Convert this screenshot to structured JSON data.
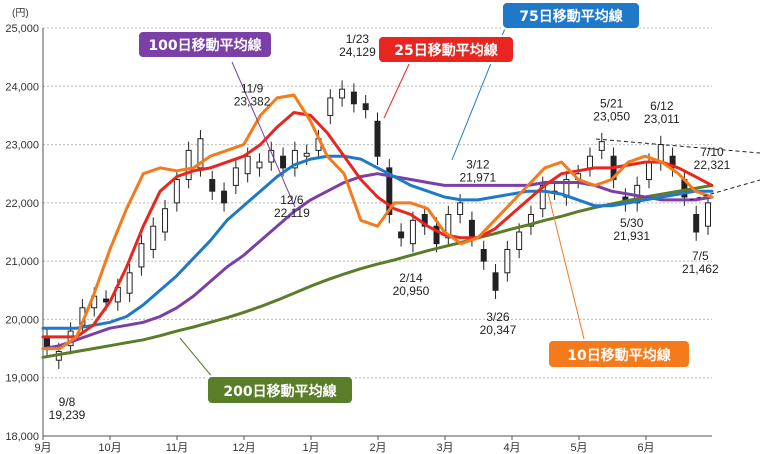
{
  "chart_data": {
    "type": "line",
    "unit": "(円)",
    "y_axis": {
      "min": 18000,
      "max": 25000,
      "step": 1000,
      "ticks": [
        "18,000",
        "19,000",
        "20,000",
        "21,000",
        "22,000",
        "23,000",
        "24,000",
        "25,000"
      ]
    },
    "x_axis": {
      "ticks": [
        "9月",
        "10月",
        "11月",
        "12月",
        "1月",
        "2月",
        "3月",
        "4月",
        "5月",
        "6月"
      ]
    },
    "colors": {
      "ma10": "#f47a1c",
      "ma25": "#e8261f",
      "ma75": "#1f78c8",
      "ma100": "#7b3fa8",
      "ma200": "#5a7d2a",
      "candle": "#222222"
    },
    "series": [
      {
        "key": "ma10",
        "name": "10日移動平均線",
        "values": [
          19.5,
          19.5,
          19.7,
          20.4,
          21.2,
          21.9,
          22.5,
          22.6,
          22.55,
          22.6,
          22.8,
          22.9,
          23.0,
          23.5,
          23.8,
          23.85,
          23.4,
          22.8,
          22.5,
          21.7,
          21.6,
          22.0,
          22.0,
          21.9,
          21.5,
          21.3,
          21.4,
          21.7,
          22.0,
          22.3,
          22.6,
          22.7,
          22.4,
          22.3,
          22.4,
          22.7,
          22.8,
          22.7,
          22.5,
          22.2,
          22.1
        ]
      },
      {
        "key": "ma25",
        "name": "25日移動平均線",
        "values": [
          19.7,
          19.7,
          19.7,
          19.9,
          20.3,
          20.9,
          21.6,
          22.2,
          22.45,
          22.55,
          22.6,
          22.7,
          22.8,
          23.0,
          23.3,
          23.55,
          23.5,
          23.2,
          22.8,
          22.4,
          22.1,
          21.9,
          21.8,
          21.6,
          21.45,
          21.4,
          21.4,
          21.55,
          21.8,
          22.05,
          22.3,
          22.5,
          22.55,
          22.6,
          22.6,
          22.65,
          22.7,
          22.7,
          22.6,
          22.45,
          22.3
        ]
      },
      {
        "key": "ma75",
        "name": "75日移動平均線",
        "values": [
          19.85,
          19.85,
          19.85,
          19.9,
          19.95,
          20.05,
          20.25,
          20.5,
          20.75,
          21.05,
          21.35,
          21.7,
          21.95,
          22.2,
          22.45,
          22.65,
          22.75,
          22.8,
          22.8,
          22.75,
          22.6,
          22.45,
          22.3,
          22.2,
          22.1,
          22.05,
          22.05,
          22.1,
          22.15,
          22.2,
          22.2,
          22.15,
          22.05,
          21.95,
          21.95,
          22.0,
          22.05,
          22.1,
          22.15,
          22.2,
          22.2
        ]
      },
      {
        "key": "ma100",
        "name": "100日移動平均線",
        "values": [
          19.5,
          19.55,
          19.65,
          19.75,
          19.85,
          19.9,
          19.95,
          20.05,
          20.2,
          20.4,
          20.65,
          20.9,
          21.1,
          21.35,
          21.6,
          21.85,
          22.05,
          22.2,
          22.35,
          22.45,
          22.5,
          22.45,
          22.4,
          22.35,
          22.3,
          22.3,
          22.3,
          22.3,
          22.3,
          22.3,
          22.35,
          22.35,
          22.35,
          22.3,
          22.2,
          22.15,
          22.1,
          22.05,
          22.05,
          22.05,
          22.1
        ]
      },
      {
        "key": "ma200",
        "name": "200日移動平均線",
        "values": [
          19.35,
          19.4,
          19.45,
          19.5,
          19.55,
          19.6,
          19.65,
          19.72,
          19.8,
          19.87,
          19.95,
          20.03,
          20.12,
          20.22,
          20.33,
          20.45,
          20.57,
          20.68,
          20.78,
          20.87,
          20.95,
          21.02,
          21.1,
          21.18,
          21.25,
          21.32,
          21.4,
          21.47,
          21.55,
          21.62,
          21.7,
          21.77,
          21.85,
          21.92,
          21.98,
          22.04,
          22.1,
          22.15,
          22.2,
          22.25,
          22.3
        ]
      }
    ],
    "candles": [
      [
        19.7,
        19.5
      ],
      [
        19.3,
        19.45
      ],
      [
        19.55,
        19.8
      ],
      [
        19.9,
        20.2
      ],
      [
        20.2,
        20.4
      ],
      [
        20.35,
        20.3
      ],
      [
        20.3,
        20.55
      ],
      [
        20.45,
        20.8
      ],
      [
        20.9,
        21.3
      ],
      [
        21.2,
        21.6
      ],
      [
        21.5,
        21.9
      ],
      [
        22.0,
        22.4
      ],
      [
        22.4,
        22.9
      ],
      [
        22.6,
        23.1
      ],
      [
        22.4,
        22.2
      ],
      [
        22.2,
        22.0
      ],
      [
        22.3,
        22.6
      ],
      [
        22.5,
        22.8
      ],
      [
        22.6,
        22.7
      ],
      [
        22.7,
        22.9
      ],
      [
        22.8,
        22.6
      ],
      [
        22.6,
        22.9
      ],
      [
        22.8,
        22.85
      ],
      [
        22.9,
        23.1
      ],
      [
        23.5,
        23.8
      ],
      [
        23.8,
        23.95
      ],
      [
        23.9,
        23.7
      ],
      [
        23.7,
        23.6
      ],
      [
        23.4,
        22.8
      ],
      [
        22.6,
        21.8
      ],
      [
        21.5,
        21.4
      ],
      [
        21.3,
        21.7
      ],
      [
        21.8,
        21.6
      ],
      [
        21.6,
        21.3
      ],
      [
        21.4,
        21.8
      ],
      [
        21.8,
        22.0
      ],
      [
        21.7,
        21.4
      ],
      [
        21.2,
        21.0
      ],
      [
        20.8,
        20.5
      ],
      [
        20.8,
        21.2
      ],
      [
        21.2,
        21.5
      ],
      [
        21.6,
        21.8
      ],
      [
        21.9,
        22.3
      ],
      [
        22.2,
        22.2
      ],
      [
        22.1,
        22.4
      ],
      [
        22.4,
        22.5
      ],
      [
        22.6,
        22.8
      ],
      [
        22.9,
        23.05
      ],
      [
        22.8,
        22.4
      ],
      [
        22.1,
        22.0
      ],
      [
        22.0,
        22.3
      ],
      [
        22.4,
        22.7
      ],
      [
        22.7,
        23.0
      ],
      [
        22.8,
        22.6
      ],
      [
        22.4,
        22.1
      ],
      [
        21.8,
        21.5
      ],
      [
        21.6,
        22.0
      ]
    ],
    "annotations": [
      {
        "date": "9/8",
        "value": "19,239",
        "x": 0,
        "y": 19.239
      },
      {
        "date": "11/9",
        "value": "23,382",
        "x": 12.5,
        "y": 23.382
      },
      {
        "date": "12/6",
        "value": "22,119",
        "x": 15.0,
        "y": 22.119
      },
      {
        "date": "1/23",
        "value": "24,129",
        "x": 18.8,
        "y": 24.129
      },
      {
        "date": "2/14",
        "value": "20,950",
        "x": 22.0,
        "y": 20.95
      },
      {
        "date": "3/12",
        "value": "21,971",
        "x": 26.0,
        "y": 21.971
      },
      {
        "date": "3/26",
        "value": "20,347",
        "x": 27.2,
        "y": 20.347
      },
      {
        "date": "5/21",
        "value": "23,050",
        "x": 34.0,
        "y": 23.05
      },
      {
        "date": "5/30",
        "value": "21,931",
        "x": 35.2,
        "y": 21.931
      },
      {
        "date": "6/12",
        "value": "23,011",
        "x": 37.0,
        "y": 23.011
      },
      {
        "date": "7/10",
        "value": "22,321",
        "x": 40.0,
        "y": 22.321
      },
      {
        "date": "7/5",
        "value": "21,462",
        "x": 39.3,
        "y": 21.462
      }
    ]
  }
}
